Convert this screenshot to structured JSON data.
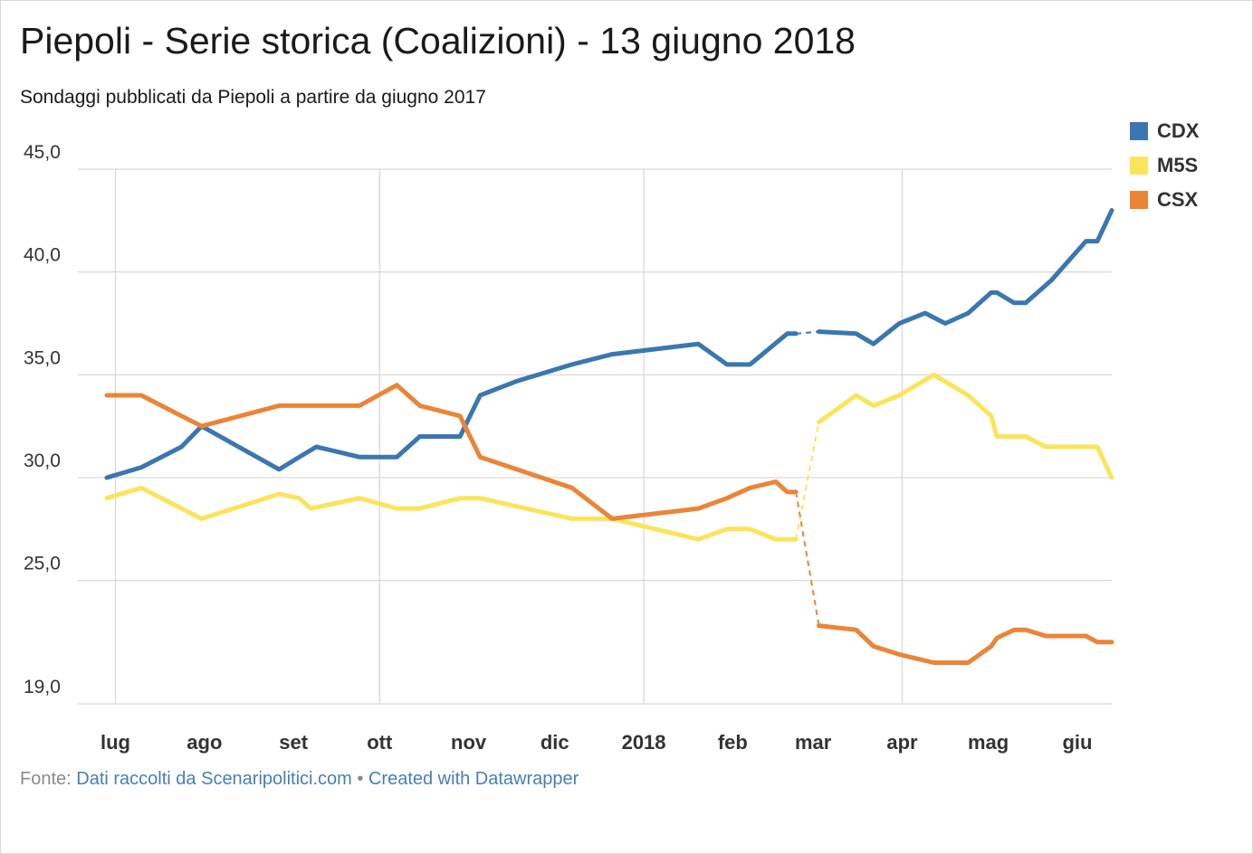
{
  "title": "Piepoli - Serie storica (Coalizioni) - 13 giugno 2018",
  "subtitle": "Sondaggi pubblicati da Piepoli a partire da giugno 2017",
  "footer": {
    "prefix": "Fonte:",
    "source_link": "Dati raccolti da Scenaripolitici.com",
    "separator": "•",
    "credit_link": "Created with Datawrapper"
  },
  "colors": {
    "CDX": "#3a77b1",
    "M5S": "#fbe45a",
    "CSX": "#ec8436"
  },
  "chart_data": {
    "type": "line",
    "title": "Piepoli - Serie storica (Coalizioni) - 13 giugno 2018",
    "subtitle": "Sondaggi pubblicati da Piepoli a partire da giugno 2017",
    "x_ticks": [
      {
        "label": "lug",
        "date": "2017-07-01"
      },
      {
        "label": "ago",
        "date": "2017-08-01"
      },
      {
        "label": "set",
        "date": "2017-09-01"
      },
      {
        "label": "ott",
        "date": "2017-10-01"
      },
      {
        "label": "nov",
        "date": "2017-11-01"
      },
      {
        "label": "dic",
        "date": "2017-12-01"
      },
      {
        "label": "2018",
        "date": "2018-01-01"
      },
      {
        "label": "feb",
        "date": "2018-02-01"
      },
      {
        "label": "mar",
        "date": "2018-03-01"
      },
      {
        "label": "apr",
        "date": "2018-04-01"
      },
      {
        "label": "mag",
        "date": "2018-05-01"
      },
      {
        "label": "giu",
        "date": "2018-06-01"
      }
    ],
    "y_ticks": [
      "45,0",
      "40,0",
      "35,0",
      "30,0",
      "25,0",
      "19,0"
    ],
    "y_tick_values": [
      45,
      40,
      35,
      30,
      25,
      19
    ],
    "ylim": [
      19,
      45
    ],
    "x_range": [
      "2017-06-28",
      "2018-06-13"
    ],
    "gridlines": true,
    "legend_position": "top-right",
    "gap": {
      "from": "2018-02-23",
      "to": "2018-03-03"
    },
    "series": [
      {
        "name": "CDX",
        "points": [
          [
            "2017-06-28",
            30.0
          ],
          [
            "2017-07-10",
            30.5
          ],
          [
            "2017-07-24",
            31.5
          ],
          [
            "2017-07-31",
            32.5
          ],
          [
            "2017-08-27",
            30.4
          ],
          [
            "2017-09-03",
            31.0
          ],
          [
            "2017-09-09",
            31.5
          ],
          [
            "2017-09-24",
            31.0
          ],
          [
            "2017-10-07",
            31.0
          ],
          [
            "2017-10-15",
            32.0
          ],
          [
            "2017-10-29",
            32.0
          ],
          [
            "2017-11-05",
            34.0
          ],
          [
            "2017-11-18",
            34.7
          ],
          [
            "2017-12-07",
            35.5
          ],
          [
            "2017-12-21",
            36.0
          ],
          [
            "2018-01-20",
            36.5
          ],
          [
            "2018-01-30",
            35.5
          ],
          [
            "2018-02-07",
            35.5
          ],
          [
            "2018-02-20",
            37.0
          ],
          [
            "2018-02-23",
            37.0
          ],
          [
            "2018-03-03",
            37.1
          ],
          [
            "2018-03-16",
            37.0
          ],
          [
            "2018-03-22",
            36.5
          ],
          [
            "2018-03-31",
            37.5
          ],
          [
            "2018-04-09",
            38.0
          ],
          [
            "2018-04-16",
            37.5
          ],
          [
            "2018-04-24",
            38.0
          ],
          [
            "2018-05-02",
            39.0
          ],
          [
            "2018-05-04",
            39.0
          ],
          [
            "2018-05-10",
            38.5
          ],
          [
            "2018-05-14",
            38.5
          ],
          [
            "2018-05-23",
            39.6
          ],
          [
            "2018-06-04",
            41.5
          ],
          [
            "2018-06-08",
            41.5
          ],
          [
            "2018-06-13",
            43.0
          ]
        ]
      },
      {
        "name": "M5S",
        "points": [
          [
            "2017-06-28",
            29.0
          ],
          [
            "2017-07-10",
            29.5
          ],
          [
            "2017-07-31",
            28.0
          ],
          [
            "2017-08-27",
            29.2
          ],
          [
            "2017-09-03",
            29.0
          ],
          [
            "2017-09-07",
            28.5
          ],
          [
            "2017-09-24",
            29.0
          ],
          [
            "2017-10-07",
            28.5
          ],
          [
            "2017-10-15",
            28.5
          ],
          [
            "2017-10-29",
            29.0
          ],
          [
            "2017-11-05",
            29.0
          ],
          [
            "2017-12-07",
            28.0
          ],
          [
            "2017-12-21",
            28.0
          ],
          [
            "2018-01-20",
            27.0
          ],
          [
            "2018-01-30",
            27.5
          ],
          [
            "2018-02-07",
            27.5
          ],
          [
            "2018-02-16",
            27.0
          ],
          [
            "2018-02-23",
            27.0
          ],
          [
            "2018-03-03",
            32.7
          ],
          [
            "2018-03-16",
            34.0
          ],
          [
            "2018-03-22",
            33.5
          ],
          [
            "2018-03-31",
            34.0
          ],
          [
            "2018-04-12",
            35.0
          ],
          [
            "2018-04-24",
            34.0
          ],
          [
            "2018-05-02",
            33.0
          ],
          [
            "2018-05-04",
            32.0
          ],
          [
            "2018-05-14",
            32.0
          ],
          [
            "2018-05-21",
            31.5
          ],
          [
            "2018-06-04",
            31.5
          ],
          [
            "2018-06-08",
            31.5
          ],
          [
            "2018-06-13",
            30.0
          ]
        ]
      },
      {
        "name": "CSX",
        "points": [
          [
            "2017-06-28",
            34.0
          ],
          [
            "2017-07-10",
            34.0
          ],
          [
            "2017-07-24",
            33.0
          ],
          [
            "2017-07-31",
            32.5
          ],
          [
            "2017-08-27",
            33.5
          ],
          [
            "2017-09-24",
            33.5
          ],
          [
            "2017-10-07",
            34.5
          ],
          [
            "2017-10-15",
            33.5
          ],
          [
            "2017-10-29",
            33.0
          ],
          [
            "2017-11-05",
            31.0
          ],
          [
            "2017-12-07",
            29.5
          ],
          [
            "2017-12-21",
            28.0
          ],
          [
            "2018-01-20",
            28.5
          ],
          [
            "2018-01-30",
            29.0
          ],
          [
            "2018-02-07",
            29.5
          ],
          [
            "2018-02-16",
            29.8
          ],
          [
            "2018-02-20",
            29.3
          ],
          [
            "2018-02-23",
            29.3
          ],
          [
            "2018-03-03",
            22.8
          ],
          [
            "2018-03-16",
            22.6
          ],
          [
            "2018-03-22",
            21.8
          ],
          [
            "2018-03-31",
            21.4
          ],
          [
            "2018-04-12",
            21.0
          ],
          [
            "2018-04-24",
            21.0
          ],
          [
            "2018-05-02",
            21.8
          ],
          [
            "2018-05-04",
            22.2
          ],
          [
            "2018-05-10",
            22.6
          ],
          [
            "2018-05-14",
            22.6
          ],
          [
            "2018-05-21",
            22.3
          ],
          [
            "2018-06-04",
            22.3
          ],
          [
            "2018-06-08",
            22.0
          ],
          [
            "2018-06-13",
            22.0
          ]
        ]
      }
    ]
  }
}
